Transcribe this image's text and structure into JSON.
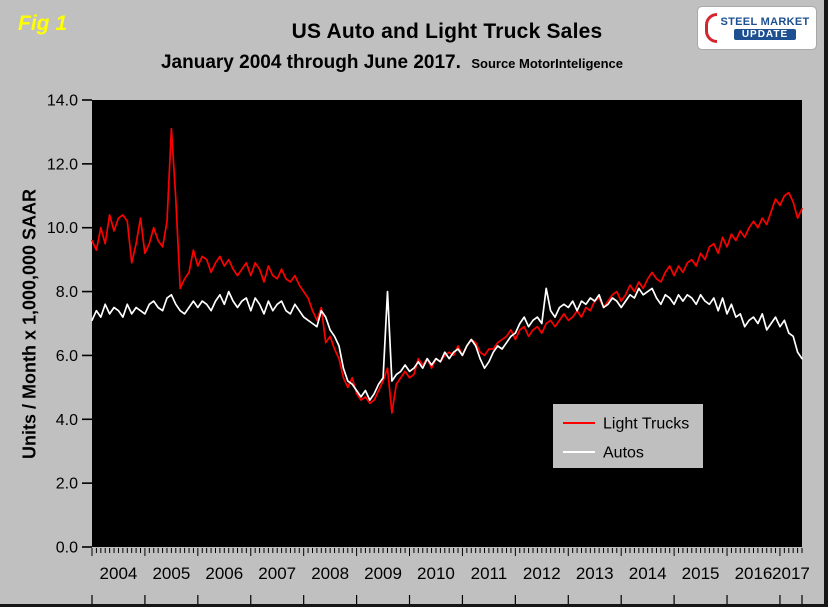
{
  "fig_label": "Fig 1",
  "title": "US Auto and Light Truck Sales",
  "subtitle": "January 2004 through June 2017.",
  "source": "Source MotorInteligence",
  "logo": {
    "line1": "STEEL MARKET",
    "line2": "UPDATE"
  },
  "ylabel": "Units / Month x 1,000,000 SAAR",
  "colors": {
    "page_bg": "#c0c0c0",
    "plot_bg": "#000000",
    "light_trucks": "#ff0000",
    "autos": "#ffffff",
    "fig_label": "#ffff00",
    "legend_bg": "#bfbfbf",
    "logo_blue": "#1d4f91",
    "logo_red": "#d22630"
  },
  "chart_data": {
    "type": "line",
    "title": "US Auto and Light Truck Sales",
    "subtitle": "January 2004 through June 2017.",
    "source": "Source MotorInteligence",
    "xlabel": "",
    "ylabel": "Units / Month x 1,000,000 SAAR",
    "x_start": "2004-01",
    "x_end": "2017-06",
    "x_frequency": "monthly",
    "ylim": [
      0,
      14
    ],
    "yticks": [
      0,
      2,
      4,
      6,
      8,
      10,
      12,
      14
    ],
    "ytick_labels": [
      "0.0",
      "2.0",
      "4.0",
      "6.0",
      "8.0",
      "10.0",
      "12.0",
      "14.0"
    ],
    "year_labels": [
      "2004",
      "2005",
      "2006",
      "2007",
      "2008",
      "2009",
      "2010",
      "2011",
      "2012",
      "2013",
      "2014",
      "2015",
      "2016",
      "2017"
    ],
    "grid": false,
    "legend_position": "inside lower-right",
    "series": [
      {
        "name": "Light Trucks",
        "color": "#ff0000",
        "values": [
          9.6,
          9.3,
          10.0,
          9.5,
          10.4,
          9.9,
          10.3,
          10.4,
          10.2,
          8.9,
          9.5,
          10.3,
          9.2,
          9.5,
          10.0,
          9.6,
          9.4,
          10.2,
          13.1,
          10.9,
          8.1,
          8.4,
          8.6,
          9.3,
          8.8,
          9.1,
          9.0,
          8.6,
          8.9,
          9.1,
          8.8,
          9.0,
          8.7,
          8.5,
          8.7,
          8.9,
          8.5,
          8.9,
          8.7,
          8.3,
          8.8,
          8.5,
          8.4,
          8.7,
          8.4,
          8.3,
          8.5,
          8.2,
          8.0,
          7.8,
          7.4,
          7.1,
          7.5,
          6.4,
          6.6,
          6.2,
          5.9,
          5.3,
          5.0,
          5.3,
          4.8,
          4.6,
          4.7,
          4.5,
          4.6,
          4.9,
          5.2,
          5.6,
          4.2,
          5.1,
          5.3,
          5.5,
          5.3,
          5.4,
          5.9,
          5.7,
          5.9,
          5.6,
          5.9,
          5.8,
          6.0,
          6.1,
          6.0,
          6.3,
          6.0,
          6.3,
          6.5,
          6.4,
          6.1,
          6.0,
          6.2,
          6.2,
          6.4,
          6.5,
          6.6,
          6.8,
          6.5,
          6.8,
          6.9,
          6.6,
          6.8,
          6.9,
          6.7,
          7.0,
          7.1,
          6.9,
          7.1,
          7.3,
          7.1,
          7.2,
          7.4,
          7.2,
          7.5,
          7.4,
          7.7,
          7.8,
          7.5,
          7.7,
          7.9,
          8.0,
          7.7,
          7.9,
          8.2,
          8.0,
          8.3,
          8.1,
          8.4,
          8.6,
          8.4,
          8.3,
          8.6,
          8.8,
          8.5,
          8.8,
          8.6,
          8.9,
          9.0,
          8.8,
          9.2,
          9.0,
          9.4,
          9.5,
          9.2,
          9.7,
          9.4,
          9.8,
          9.6,
          9.9,
          9.7,
          10.0,
          10.2,
          10.0,
          10.3,
          10.1,
          10.5,
          10.9,
          10.7,
          11.0,
          11.1,
          10.8,
          10.3,
          10.6
        ]
      },
      {
        "name": "Autos",
        "color": "#ffffff",
        "values": [
          7.1,
          7.4,
          7.2,
          7.6,
          7.3,
          7.5,
          7.4,
          7.2,
          7.6,
          7.3,
          7.5,
          7.4,
          7.3,
          7.6,
          7.7,
          7.5,
          7.4,
          7.8,
          7.9,
          7.6,
          7.4,
          7.3,
          7.5,
          7.7,
          7.5,
          7.7,
          7.6,
          7.4,
          7.7,
          7.9,
          7.6,
          8.0,
          7.7,
          7.5,
          7.7,
          7.8,
          7.4,
          7.8,
          7.6,
          7.3,
          7.7,
          7.4,
          7.6,
          7.7,
          7.4,
          7.3,
          7.6,
          7.4,
          7.2,
          7.1,
          7.0,
          6.9,
          7.4,
          7.2,
          6.8,
          6.6,
          6.3,
          5.6,
          5.2,
          5.1,
          4.9,
          4.7,
          4.9,
          4.6,
          4.8,
          5.1,
          5.3,
          8.0,
          5.2,
          5.4,
          5.5,
          5.7,
          5.5,
          5.6,
          5.8,
          5.6,
          5.9,
          5.7,
          5.9,
          5.8,
          6.1,
          5.9,
          6.1,
          6.2,
          6.0,
          6.3,
          6.5,
          6.3,
          5.9,
          5.6,
          5.8,
          6.1,
          6.3,
          6.2,
          6.4,
          6.6,
          6.7,
          7.0,
          7.2,
          6.9,
          7.1,
          7.2,
          7.0,
          8.1,
          7.4,
          7.2,
          7.5,
          7.6,
          7.5,
          7.7,
          7.4,
          7.7,
          7.6,
          7.8,
          7.7,
          7.9,
          7.5,
          7.6,
          7.8,
          7.7,
          7.5,
          7.7,
          7.9,
          7.8,
          8.1,
          7.9,
          8.0,
          8.1,
          7.8,
          7.6,
          7.9,
          7.8,
          7.6,
          7.9,
          7.7,
          7.9,
          7.8,
          7.6,
          7.9,
          7.7,
          7.6,
          7.8,
          7.4,
          7.8,
          7.3,
          7.6,
          7.2,
          7.3,
          6.9,
          7.1,
          7.2,
          7.0,
          7.3,
          6.8,
          7.0,
          7.2,
          6.9,
          7.1,
          6.7,
          6.6,
          6.1,
          5.9
        ]
      }
    ]
  }
}
